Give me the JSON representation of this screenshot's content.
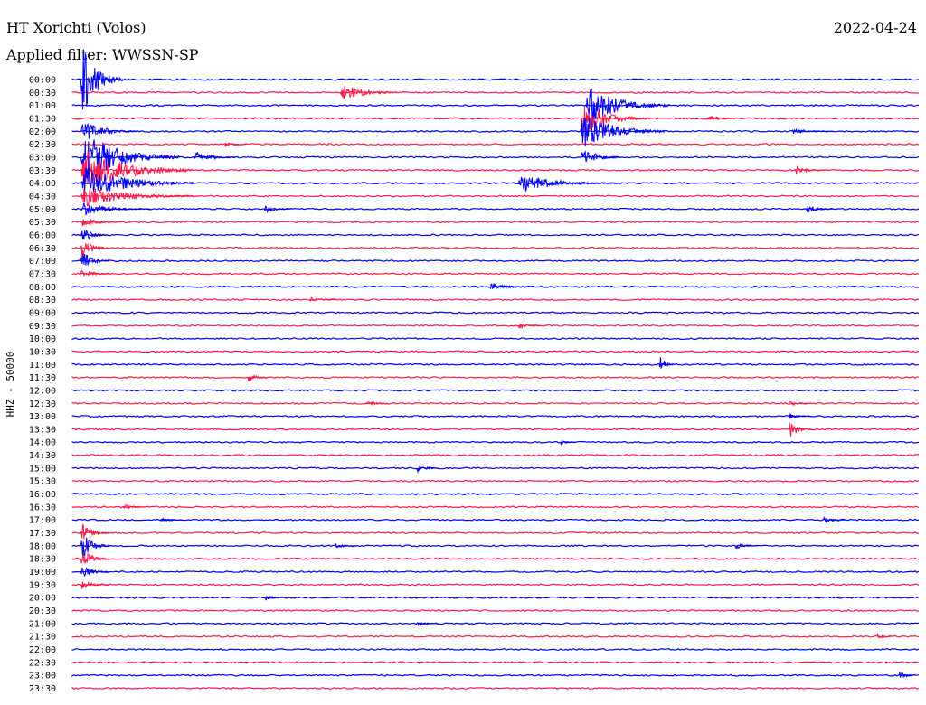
{
  "header": {
    "station": "HT Xorichti (Volos)",
    "date": "2022-04-24",
    "filter": "Applied filter: WWSSN-SP"
  },
  "chart_data": {
    "type": "helicorder",
    "ylabel": "HHZ - 50000",
    "row_labels": [
      "00:00",
      "00:30",
      "01:00",
      "01:30",
      "02:00",
      "02:30",
      "03:00",
      "03:30",
      "04:00",
      "04:30",
      "05:00",
      "05:30",
      "06:00",
      "06:30",
      "07:00",
      "07:30",
      "08:00",
      "08:30",
      "09:00",
      "09:30",
      "10:00",
      "10:30",
      "11:00",
      "11:30",
      "12:00",
      "12:30",
      "13:00",
      "13:30",
      "14:00",
      "14:30",
      "15:00",
      "15:30",
      "16:00",
      "16:30",
      "17:00",
      "17:30",
      "18:00",
      "18:30",
      "19:00",
      "19:30",
      "20:00",
      "20:30",
      "21:00",
      "21:30",
      "22:00",
      "22:30",
      "23:00",
      "23:30"
    ],
    "row_colors": [
      "#0000ee",
      "#ff1a4a"
    ],
    "row_span_minutes": 30,
    "events": [
      {
        "row": 0,
        "minute": 0.3,
        "amplitude": 45,
        "duration": 1.5
      },
      {
        "row": 1,
        "minute": 9.5,
        "amplitude": 12,
        "duration": 2.0
      },
      {
        "row": 2,
        "minute": 18.2,
        "amplitude": 25,
        "duration": 3.0
      },
      {
        "row": 3,
        "minute": 18.0,
        "amplitude": 20,
        "duration": 2.5
      },
      {
        "row": 3,
        "minute": 22.5,
        "amplitude": 5,
        "duration": 1.0
      },
      {
        "row": 4,
        "minute": 0.3,
        "amplitude": 14,
        "duration": 2.0
      },
      {
        "row": 4,
        "minute": 18.0,
        "amplitude": 24,
        "duration": 3.0
      },
      {
        "row": 4,
        "minute": 25.5,
        "amplitude": 4,
        "duration": 1.5
      },
      {
        "row": 5,
        "minute": 5.4,
        "amplitude": 3,
        "duration": 0.8
      },
      {
        "row": 6,
        "minute": 0.3,
        "amplitude": 34,
        "duration": 3.5
      },
      {
        "row": 6,
        "minute": 4.3,
        "amplitude": 8,
        "duration": 1.5
      },
      {
        "row": 6,
        "minute": 18.0,
        "amplitude": 12,
        "duration": 1.5
      },
      {
        "row": 7,
        "minute": 0.3,
        "amplitude": 28,
        "duration": 4.0
      },
      {
        "row": 7,
        "minute": 25.6,
        "amplitude": 5,
        "duration": 1.2
      },
      {
        "row": 8,
        "minute": 0.3,
        "amplitude": 22,
        "duration": 4.0
      },
      {
        "row": 8,
        "minute": 15.8,
        "amplitude": 12,
        "duration": 3.5
      },
      {
        "row": 9,
        "minute": 0.3,
        "amplitude": 14,
        "duration": 4.0
      },
      {
        "row": 10,
        "minute": 0.3,
        "amplitude": 8,
        "duration": 2.5
      },
      {
        "row": 10,
        "minute": 6.8,
        "amplitude": 5,
        "duration": 1.0
      },
      {
        "row": 10,
        "minute": 26.0,
        "amplitude": 5,
        "duration": 1.0
      },
      {
        "row": 11,
        "minute": 0.3,
        "amplitude": 6,
        "duration": 1.5
      },
      {
        "row": 12,
        "minute": 0.3,
        "amplitude": 10,
        "duration": 1.0
      },
      {
        "row": 13,
        "minute": 0.3,
        "amplitude": 14,
        "duration": 1.0
      },
      {
        "row": 14,
        "minute": 0.3,
        "amplitude": 14,
        "duration": 1.0
      },
      {
        "row": 15,
        "minute": 0.3,
        "amplitude": 8,
        "duration": 1.0
      },
      {
        "row": 16,
        "minute": 14.8,
        "amplitude": 5,
        "duration": 1.5
      },
      {
        "row": 17,
        "minute": 8.4,
        "amplitude": 3,
        "duration": 1.0
      },
      {
        "row": 19,
        "minute": 15.8,
        "amplitude": 6,
        "duration": 0.8
      },
      {
        "row": 22,
        "minute": 20.8,
        "amplitude": 14,
        "duration": 0.5
      },
      {
        "row": 23,
        "minute": 6.2,
        "amplitude": 7,
        "duration": 0.8
      },
      {
        "row": 25,
        "minute": 10.4,
        "amplitude": 5,
        "duration": 0.8
      },
      {
        "row": 25,
        "minute": 25.4,
        "amplitude": 4,
        "duration": 0.8
      },
      {
        "row": 26,
        "minute": 25.4,
        "amplitude": 4,
        "duration": 0.8
      },
      {
        "row": 27,
        "minute": 25.4,
        "amplitude": 12,
        "duration": 0.8
      },
      {
        "row": 28,
        "minute": 17.3,
        "amplitude": 3,
        "duration": 0.6
      },
      {
        "row": 30,
        "minute": 12.2,
        "amplitude": 5,
        "duration": 0.8
      },
      {
        "row": 33,
        "minute": 1.8,
        "amplitude": 4,
        "duration": 0.8
      },
      {
        "row": 34,
        "minute": 3.1,
        "amplitude": 3,
        "duration": 0.8
      },
      {
        "row": 34,
        "minute": 26.6,
        "amplitude": 4,
        "duration": 0.8
      },
      {
        "row": 35,
        "minute": 0.3,
        "amplitude": 12,
        "duration": 1.0
      },
      {
        "row": 36,
        "minute": 0.3,
        "amplitude": 18,
        "duration": 1.0
      },
      {
        "row": 36,
        "minute": 9.3,
        "amplitude": 4,
        "duration": 0.8
      },
      {
        "row": 36,
        "minute": 23.5,
        "amplitude": 4,
        "duration": 0.8
      },
      {
        "row": 37,
        "minute": 0.3,
        "amplitude": 14,
        "duration": 1.0
      },
      {
        "row": 38,
        "minute": 0.3,
        "amplitude": 10,
        "duration": 1.0
      },
      {
        "row": 39,
        "minute": 0.3,
        "amplitude": 6,
        "duration": 1.0
      },
      {
        "row": 40,
        "minute": 6.8,
        "amplitude": 4,
        "duration": 0.8
      },
      {
        "row": 42,
        "minute": 12.2,
        "amplitude": 3,
        "duration": 0.8
      },
      {
        "row": 43,
        "minute": 28.5,
        "amplitude": 4,
        "duration": 0.6
      },
      {
        "row": 46,
        "minute": 29.3,
        "amplitude": 6,
        "duration": 0.6
      }
    ]
  }
}
